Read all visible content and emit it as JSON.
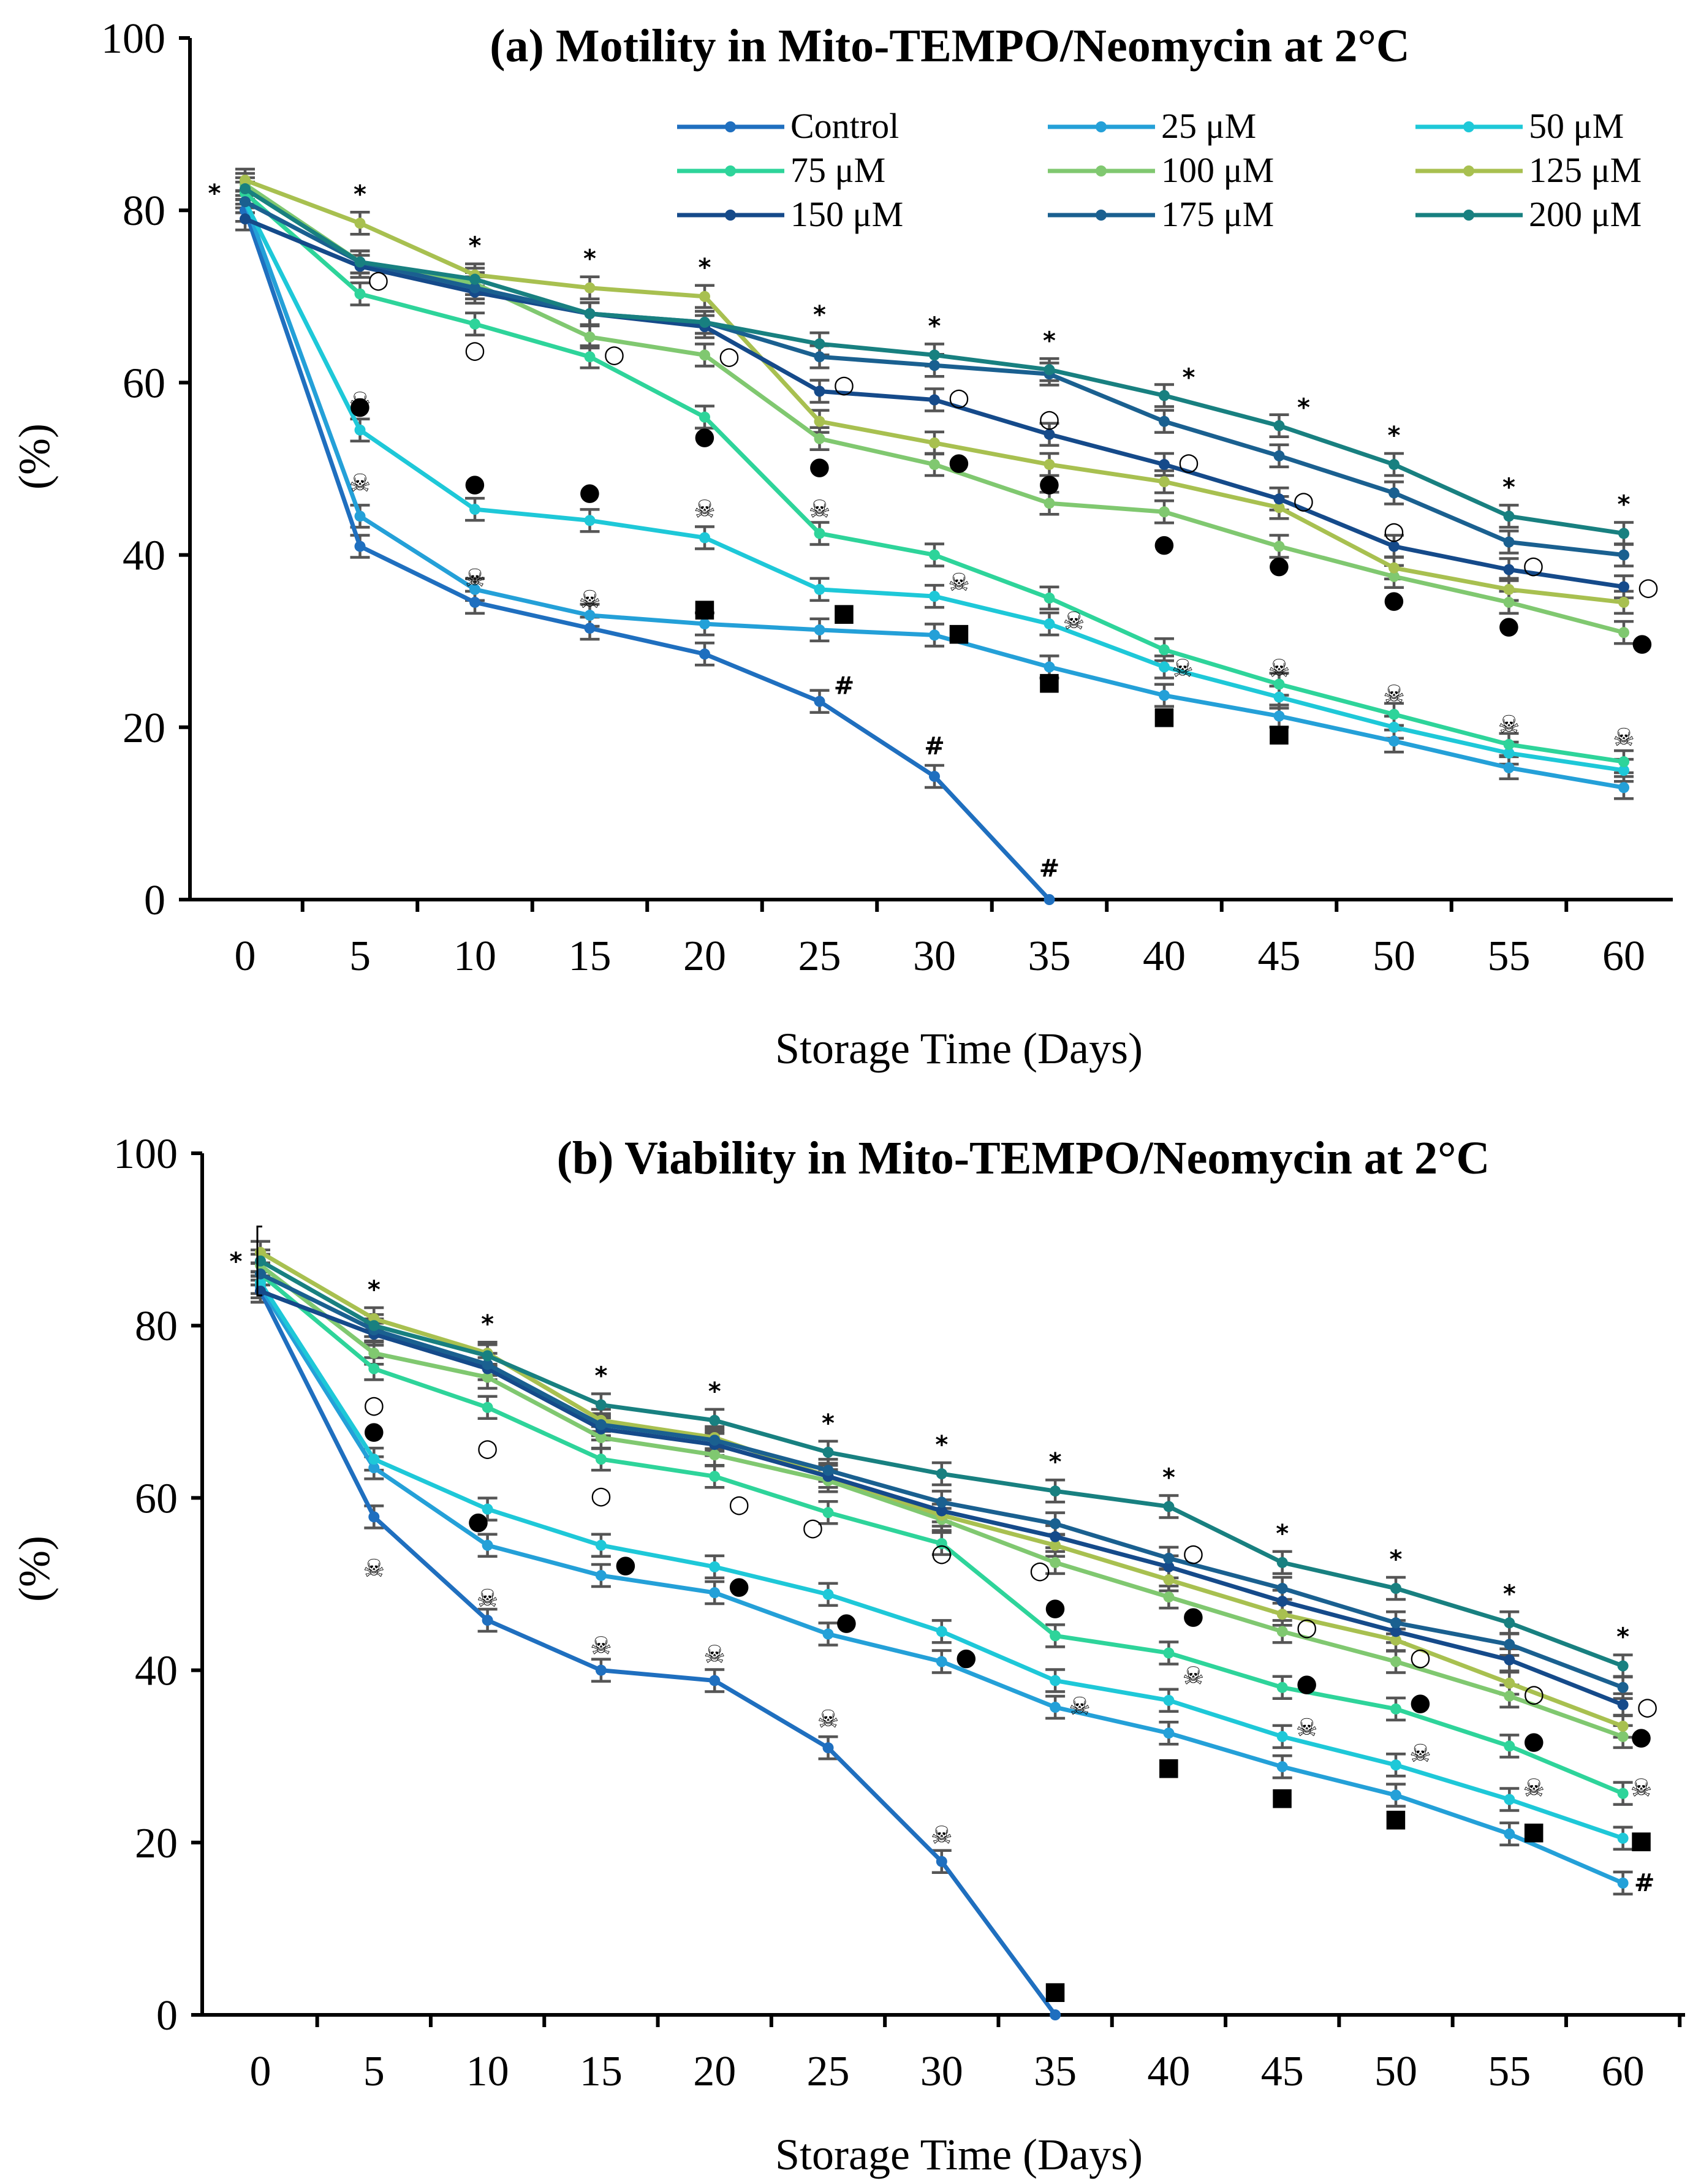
{
  "chart_data": [
    {
      "type": "line",
      "title": "(a) Motility in Mito-TEMPO/Neomycin at 2°C",
      "xlabel": "Storage Time (Days)",
      "ylabel": "(%)",
      "xticks": [
        "0",
        "5",
        "10",
        "15",
        "20",
        "25",
        "30",
        "35",
        "40",
        "45",
        "50",
        "55",
        "60"
      ],
      "yticks": [
        "0",
        "20",
        "40",
        "60",
        "80",
        "100"
      ],
      "ylim": [
        0,
        100
      ],
      "legend_position": "top-right",
      "series": [
        {
          "name": "Control",
          "color": "#1f6fbf",
          "values": [
            80,
            41,
            34.5,
            31.5,
            28.5,
            23,
            14.3,
            0
          ]
        },
        {
          "name": "25 μM",
          "color": "#24a0d8",
          "values": [
            81,
            44.5,
            36,
            33,
            32,
            31.3,
            30.7,
            27,
            23.7,
            21.3,
            18.4,
            15.3,
            13
          ]
        },
        {
          "name": "50 μM",
          "color": "#1ec8d8",
          "values": [
            81,
            54.5,
            45.3,
            44,
            42,
            36,
            35.2,
            32,
            27,
            23.5,
            20,
            17,
            15
          ]
        },
        {
          "name": "75 μM",
          "color": "#2ed49a",
          "values": [
            82,
            70.3,
            66.8,
            63,
            56,
            42.5,
            40,
            35,
            29,
            25,
            21.5,
            18,
            16
          ]
        },
        {
          "name": "100 μM",
          "color": "#80c870",
          "values": [
            83,
            74,
            71.5,
            65.3,
            63.2,
            53.5,
            50.5,
            46,
            45,
            41,
            37.5,
            34.5,
            31
          ]
        },
        {
          "name": "125 μM",
          "color": "#a8c050",
          "values": [
            83.5,
            78.5,
            72.5,
            71,
            70,
            55.5,
            53,
            50.5,
            48.5,
            45.5,
            38.5,
            36,
            34.5
          ]
        },
        {
          "name": "150 μM",
          "color": "#154a8a",
          "values": [
            79,
            73.5,
            70.5,
            68,
            66.5,
            59,
            58,
            54,
            50.5,
            46.5,
            41,
            38.3,
            36.3
          ]
        },
        {
          "name": "175 μM",
          "color": "#1a6090",
          "values": [
            81,
            74,
            71,
            68,
            67,
            63,
            62,
            61,
            55.5,
            51.5,
            47.2,
            41.5,
            40
          ]
        },
        {
          "name": "200 μM",
          "color": "#188080",
          "values": [
            82.5,
            74,
            72,
            68,
            67,
            64.5,
            63.2,
            61.5,
            58.5,
            55,
            50.5,
            44.5,
            42.5
          ]
        }
      ],
      "annotations": {
        "asterisk": "*",
        "open_circle": "○",
        "filled_circle": "●",
        "skull": "☠",
        "square": "■",
        "hash": "#"
      }
    },
    {
      "type": "line",
      "title": "(b) Viability in Mito-TEMPO/Neomycin at 2°C",
      "xlabel": "Storage Time (Days)",
      "ylabel": "(%)",
      "xticks": [
        "0",
        "5",
        "10",
        "15",
        "20",
        "25",
        "30",
        "35",
        "40",
        "45",
        "50",
        "55",
        "60"
      ],
      "yticks": [
        "0",
        "20",
        "40",
        "60",
        "80",
        "100"
      ],
      "ylim": [
        0,
        100
      ],
      "series": [
        {
          "name": "Control",
          "color": "#1f6fbf",
          "values": [
            84,
            57.8,
            45.8,
            40,
            38.8,
            31,
            17.8,
            0
          ]
        },
        {
          "name": "25 μM",
          "color": "#24a0d8",
          "values": [
            84.5,
            63.5,
            54.5,
            51,
            49,
            44.2,
            41,
            35.7,
            32.7,
            28.8,
            25.5,
            21,
            15.3
          ]
        },
        {
          "name": "50 μM",
          "color": "#1ec8d8",
          "values": [
            85,
            64.5,
            58.7,
            54.5,
            52,
            48.8,
            44.5,
            38.8,
            36.5,
            32.3,
            29,
            25,
            20.5
          ]
        },
        {
          "name": "75 μM",
          "color": "#2ed49a",
          "values": [
            86,
            75,
            70.5,
            64.5,
            62.5,
            58.3,
            54.7,
            44,
            42,
            38,
            35.5,
            31.2,
            25.7
          ]
        },
        {
          "name": "100 μM",
          "color": "#80c870",
          "values": [
            87,
            76.8,
            74,
            67,
            65,
            62,
            57.5,
            52.5,
            48.5,
            44.5,
            41,
            37,
            32.3
          ]
        },
        {
          "name": "125 μM",
          "color": "#a8c050",
          "values": [
            88.5,
            80.8,
            76.8,
            69,
            67,
            62.5,
            58,
            54.5,
            50.5,
            46.5,
            43.5,
            38.5,
            33.5
          ]
        },
        {
          "name": "150 μM",
          "color": "#154a8a",
          "values": [
            84,
            79,
            75,
            68,
            66.2,
            62.5,
            58.5,
            55.5,
            52,
            48,
            44.5,
            41.2,
            36
          ]
        },
        {
          "name": "175 μM",
          "color": "#1a6090",
          "values": [
            86,
            79.5,
            75.5,
            68.5,
            66.7,
            63.2,
            59.5,
            57,
            53,
            49.5,
            45.5,
            43,
            38
          ]
        },
        {
          "name": "200 μM",
          "color": "#188080",
          "values": [
            87.5,
            80,
            76.5,
            70.8,
            69,
            65.3,
            62.8,
            60.8,
            59,
            52.5,
            49.5,
            45.5,
            40.5
          ]
        }
      ],
      "annotations": {
        "asterisk": "*",
        "open_circle": "○",
        "filled_circle": "●",
        "skull": "☠",
        "square": "■",
        "hash": "#"
      }
    }
  ]
}
